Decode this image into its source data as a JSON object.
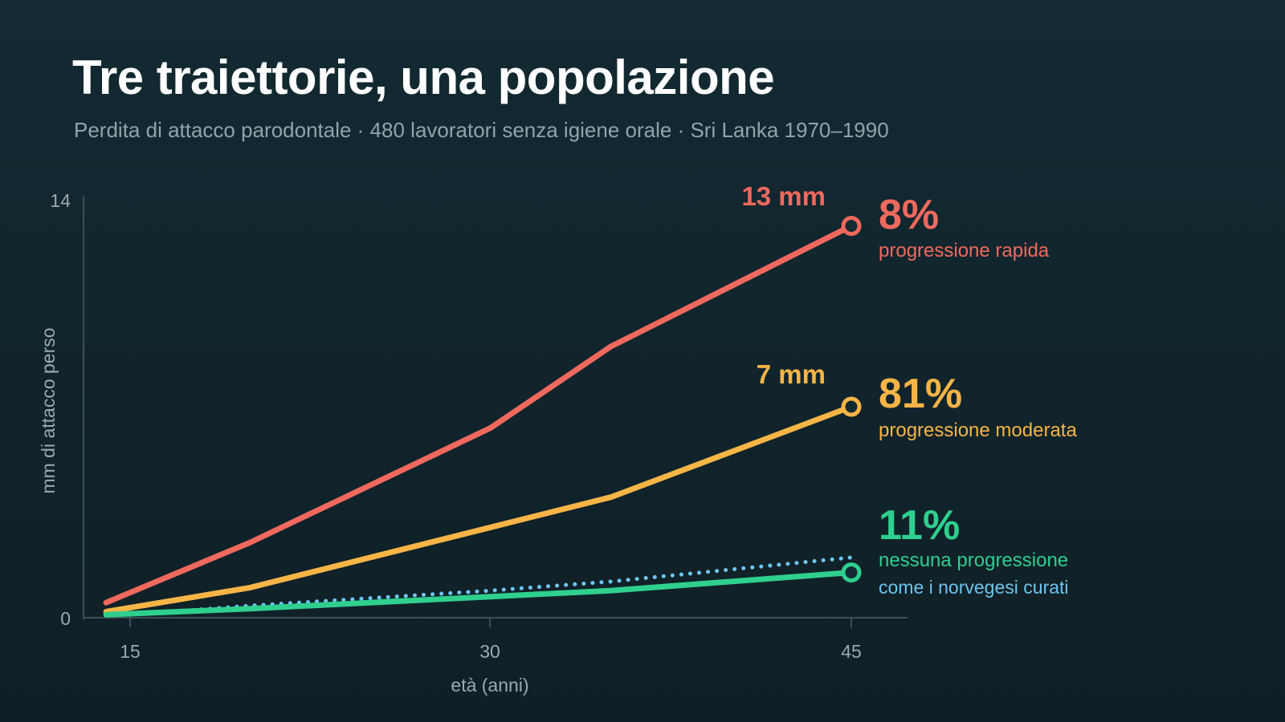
{
  "title": "Tre traiettorie, una popolazione",
  "subtitle": "Perdita di attacco parodontale · 480 lavoratori senza igiene orale · Sri Lanka 1970–1990",
  "colors": {
    "background": "#132a32",
    "rapid": "#f0695e",
    "moderate": "#f6b546",
    "none": "#2fcf8e",
    "norway": "#6fc4ee",
    "axis": "#3a5158"
  },
  "chart_data": {
    "type": "line",
    "xlabel": "età (anni)",
    "ylabel": "mm di attacco perso",
    "xlim": [
      13,
      47
    ],
    "ylim": [
      0,
      14
    ],
    "x_ticks": [
      "15",
      "30",
      "45"
    ],
    "y_ticks": [
      "0",
      "14"
    ],
    "grid": false,
    "series": [
      {
        "key": "rapid",
        "x": [
          14,
          20,
          30,
          35,
          45
        ],
        "y": [
          0.5,
          2.5,
          6.3,
          9.0,
          13.0
        ],
        "end_value_label": "13 mm",
        "share": "8%",
        "label": "progressione rapida",
        "color": "#f0695e",
        "style": "solid"
      },
      {
        "key": "moderate",
        "x": [
          14,
          20,
          30,
          35,
          45
        ],
        "y": [
          0.2,
          1.0,
          3.0,
          4.0,
          7.0
        ],
        "end_value_label": "7 mm",
        "share": "81%",
        "label": "progressione moderata",
        "color": "#f6b546",
        "style": "solid"
      },
      {
        "key": "none",
        "x": [
          14,
          20,
          30,
          35,
          45
        ],
        "y": [
          0.1,
          0.3,
          0.7,
          0.9,
          1.5
        ],
        "end_value_label": "",
        "share": "11%",
        "label": "nessuna progressione",
        "color": "#2fcf8e",
        "style": "solid"
      },
      {
        "key": "norway",
        "x": [
          15,
          20,
          30,
          35,
          45
        ],
        "y": [
          0.1,
          0.4,
          0.9,
          1.2,
          2.0
        ],
        "end_value_label": "",
        "share": "",
        "label": "come i norvegesi curati",
        "color": "#6fc4ee",
        "style": "dotted"
      }
    ]
  }
}
